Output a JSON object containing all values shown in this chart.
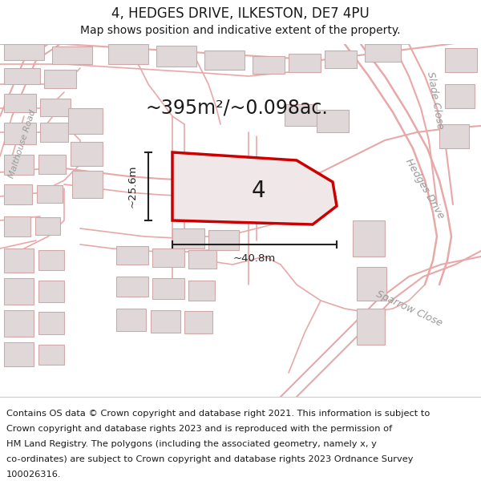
{
  "title_line1": "4, HEDGES DRIVE, ILKESTON, DE7 4PU",
  "title_line2": "Map shows position and indicative extent of the property.",
  "area_text": "~395m²/~0.098ac.",
  "plot_number": "4",
  "dim_width": "~40.8m",
  "dim_height": "~25.6m",
  "footer_lines": [
    "Contains OS data © Crown copyright and database right 2021. This information is subject to",
    "Crown copyright and database rights 2023 and is reproduced with the permission of",
    "HM Land Registry. The polygons (including the associated geometry, namely x, y",
    "co-ordinates) are subject to Crown copyright and database rights 2023 Ordnance Survey",
    "100026316."
  ],
  "map_bg": "#ffffff",
  "street_color": "#e8a8a8",
  "building_fc": "#e0d8d8",
  "building_ec": "#d0a8a8",
  "plot_ec": "#cc0000",
  "plot_fc": "#f0e8e8",
  "dim_color": "#222222",
  "text_dark": "#1a1a1a",
  "road_label_color": "#999999",
  "footer_bg": "#f5f2f2",
  "header_bg": "#ffffff"
}
